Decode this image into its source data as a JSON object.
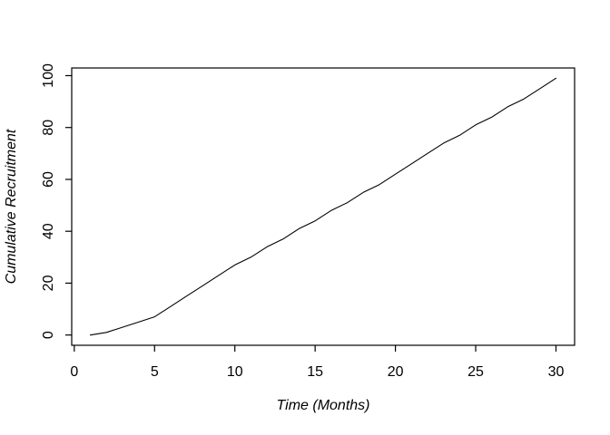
{
  "figure": {
    "background": "#ffffff",
    "axis_color": "#000000",
    "line_color": "#000000",
    "text_color": "#000000"
  },
  "chart_data": {
    "type": "line",
    "title": "",
    "xlabel": "Time (Months)",
    "ylabel": "Cumulative Recruitment",
    "x": [
      1,
      2,
      3,
      4,
      5,
      6,
      7,
      8,
      9,
      10,
      11,
      12,
      13,
      14,
      15,
      16,
      17,
      18,
      19,
      20,
      21,
      22,
      23,
      24,
      25,
      26,
      27,
      28,
      29,
      30
    ],
    "y": [
      0,
      1,
      3,
      5,
      7,
      11,
      15,
      19,
      23,
      27,
      30,
      34,
      37,
      41,
      44,
      48,
      51,
      55,
      58,
      62,
      66,
      70,
      74,
      77,
      81,
      84,
      88,
      91,
      95,
      99
    ],
    "x_ticks": [
      0,
      5,
      10,
      15,
      20,
      25,
      30
    ],
    "y_ticks": [
      0,
      20,
      40,
      60,
      80,
      100
    ],
    "xlim": [
      -0.16,
      31.16
    ],
    "ylim": [
      -3.96,
      102.96
    ],
    "grid": false,
    "legend_position": "none",
    "marker": "none",
    "box_around_plot": true
  }
}
